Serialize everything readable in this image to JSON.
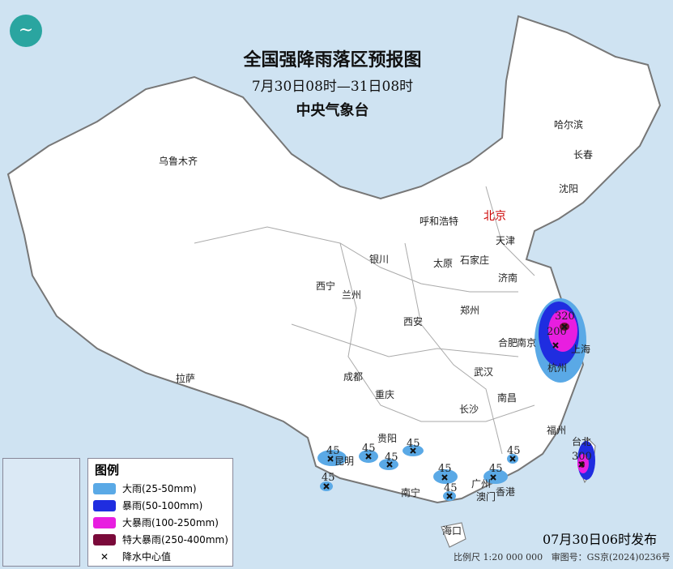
{
  "header": {
    "title": "全国强降雨落区预报图",
    "period": "7月30日08时—31日08时",
    "agency": "中央气象台"
  },
  "cities": [
    {
      "name": "乌鲁木齐",
      "capital": false
    },
    {
      "name": "哈尔滨",
      "capital": false
    },
    {
      "name": "长春",
      "capital": false
    },
    {
      "name": "沈阳",
      "capital": false
    },
    {
      "name": "呼和浩特",
      "capital": false
    },
    {
      "name": "北京",
      "capital": true
    },
    {
      "name": "天津",
      "capital": false
    },
    {
      "name": "银川",
      "capital": false
    },
    {
      "name": "太原",
      "capital": false
    },
    {
      "name": "石家庄",
      "capital": false
    },
    {
      "name": "济南",
      "capital": false
    },
    {
      "name": "西宁",
      "capital": false
    },
    {
      "name": "兰州",
      "capital": false
    },
    {
      "name": "郑州",
      "capital": false
    },
    {
      "name": "西安",
      "capital": false
    },
    {
      "name": "合肥",
      "capital": false
    },
    {
      "name": "南京",
      "capital": false
    },
    {
      "name": "上海",
      "capital": false
    },
    {
      "name": "杭州",
      "capital": false
    },
    {
      "name": "拉萨",
      "capital": false
    },
    {
      "name": "成都",
      "capital": false
    },
    {
      "name": "武汉",
      "capital": false
    },
    {
      "name": "重庆",
      "capital": false
    },
    {
      "name": "长沙",
      "capital": false
    },
    {
      "name": "南昌",
      "capital": false
    },
    {
      "name": "福州",
      "capital": false
    },
    {
      "name": "台北",
      "capital": false
    },
    {
      "name": "贵阳",
      "capital": false
    },
    {
      "name": "昆明",
      "capital": false
    },
    {
      "name": "南宁",
      "capital": false
    },
    {
      "name": "广州",
      "capital": false
    },
    {
      "name": "澳门",
      "capital": false
    },
    {
      "name": "香港",
      "capital": false
    },
    {
      "name": "海口",
      "capital": false
    }
  ],
  "rain_centers": [
    "320",
    "200",
    "300",
    "45",
    "45",
    "45",
    "45",
    "45",
    "45",
    "45",
    "45",
    "45"
  ],
  "legend": {
    "title": "图例",
    "items": [
      {
        "label": "大雨(25-50mm)",
        "color": "#5aa9e6"
      },
      {
        "label": "暴雨(50-100mm)",
        "color": "#1f2de0"
      },
      {
        "label": "大暴雨(100-250mm)",
        "color": "#e81ee0"
      },
      {
        "label": "特大暴雨(250-400mm)",
        "color": "#7a0a3a"
      },
      {
        "label": "降水中心值",
        "color": "#111111"
      }
    ]
  },
  "footer": {
    "issued": "07月30日06时发布",
    "scale": "比例尺 1:20 000 000",
    "map_no": "审图号：GS京(2024)0236号"
  },
  "colors": {
    "sea": "#cfe3f2",
    "land": "#ffffff",
    "border": "#999999"
  }
}
